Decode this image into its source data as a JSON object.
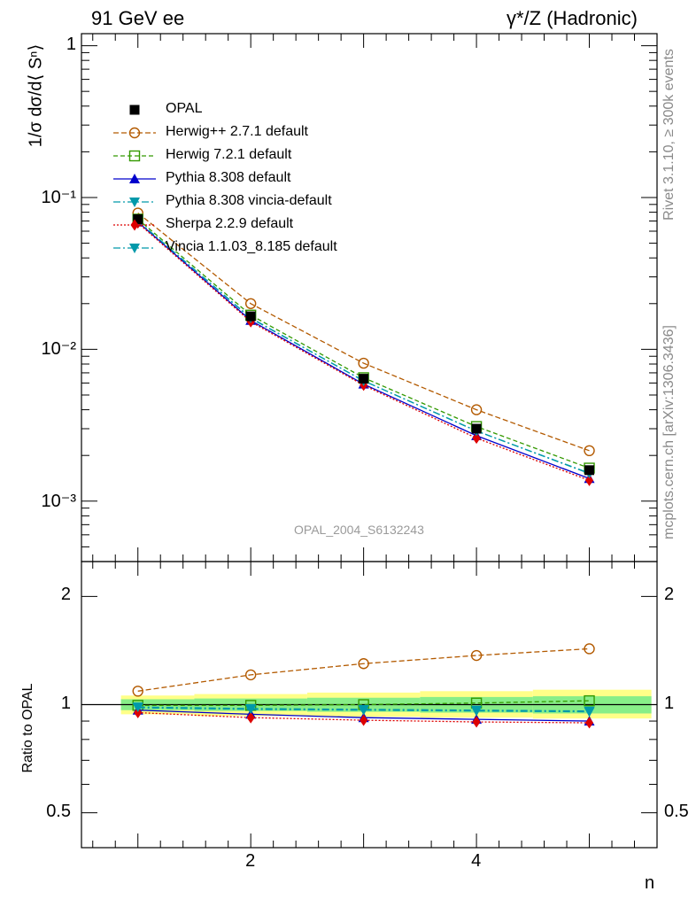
{
  "header": {
    "title_left": "91 GeV ee",
    "title_right": "γ*/Z (Hadronic)"
  },
  "side_notes": {
    "rivet": "Rivet 3.1.10, ≥ 300k events",
    "mcplots": "mcplots.cern.ch [arXiv:1306.3436]"
  },
  "watermark": "OPAL_2004_S6132243",
  "chart_data": [
    {
      "type": "line",
      "title": "",
      "ylabel": "1/σ dσ/d⟨ Sⁿ⟩",
      "xlabel": "n",
      "yscale": "log",
      "xlim": [
        0.5,
        5.6
      ],
      "ylim": [
        0.0004,
        1.2
      ],
      "y_ticks": [
        0.001,
        0.01,
        0.1,
        1
      ],
      "y_tick_labels": [
        "10⁻³",
        "10⁻²",
        "10⁻¹",
        "1"
      ],
      "x": [
        1,
        2,
        3,
        4,
        5
      ],
      "legend_position": "top-left",
      "series": [
        {
          "name": "OPAL",
          "color": "#000000",
          "marker": "square",
          "dash": "none",
          "line": false,
          "values": [
            0.072,
            0.0165,
            0.0064,
            0.003,
            0.0016
          ]
        },
        {
          "name": "Herwig++ 2.7.1 default",
          "color": "#b35a00",
          "marker": "circle-open",
          "dash": "6,3",
          "values": [
            0.079,
            0.02,
            0.0081,
            0.004,
            0.00215
          ]
        },
        {
          "name": "Herwig 7.2.1 default",
          "color": "#339900",
          "marker": "square-open",
          "dash": "5,3",
          "values": [
            0.072,
            0.0168,
            0.0065,
            0.0031,
            0.00165
          ]
        },
        {
          "name": "Pythia 8.308 default",
          "color": "#0000cc",
          "marker": "triangle-up",
          "dash": "none",
          "values": [
            0.069,
            0.0155,
            0.0059,
            0.0027,
            0.00141
          ]
        },
        {
          "name": "Pythia 8.308 vincia-default",
          "color": "#0099aa",
          "marker": "triangle-down",
          "dash": "8,3,2,3",
          "values": [
            0.07,
            0.016,
            0.0062,
            0.0029,
            0.00152
          ]
        },
        {
          "name": "Sherpa 2.2.9 default",
          "color": "#dd0000",
          "marker": "diamond",
          "dash": "2,2",
          "values": [
            0.068,
            0.0152,
            0.0058,
            0.0026,
            0.00137
          ]
        },
        {
          "name": "Vincia 1.1.03_8.185 default",
          "color": "#0099aa",
          "marker": "triangle-down",
          "dash": "8,3,2,3",
          "values": [
            0.07,
            0.0161,
            0.0062,
            0.0029,
            0.00153
          ]
        }
      ]
    },
    {
      "type": "line",
      "title": "",
      "ylabel": "Ratio to OPAL",
      "xlabel": "n",
      "yscale": "log",
      "xlim": [
        0.5,
        5.6
      ],
      "ylim": [
        0.4,
        2.5
      ],
      "y_ticks": [
        0.5,
        1,
        2
      ],
      "y_tick_labels": [
        "0.5",
        "1",
        "2"
      ],
      "x_ticks": [
        2,
        4
      ],
      "x_tick_labels": [
        "2",
        "4"
      ],
      "x": [
        1,
        2,
        3,
        4,
        5
      ],
      "bands": {
        "yellow": {
          "color": "#ffff88",
          "lo": [
            0.94,
            0.93,
            0.925,
            0.92,
            0.915
          ],
          "hi": [
            1.06,
            1.07,
            1.08,
            1.09,
            1.1
          ]
        },
        "green": {
          "color": "#88ee88",
          "lo": [
            0.965,
            0.96,
            0.955,
            0.95,
            0.945
          ],
          "hi": [
            1.035,
            1.04,
            1.045,
            1.05,
            1.055
          ]
        }
      },
      "series": [
        {
          "name": "Herwig++ 2.7.1 default",
          "color": "#b35a00",
          "marker": "circle-open",
          "dash": "6,3",
          "values": [
            1.09,
            1.21,
            1.3,
            1.37,
            1.43
          ]
        },
        {
          "name": "Herwig 7.2.1 default",
          "color": "#339900",
          "marker": "square-open",
          "dash": "5,3",
          "values": [
            0.995,
            0.995,
            1.0,
            1.01,
            1.025
          ]
        },
        {
          "name": "Pythia 8.308 default",
          "color": "#0000cc",
          "marker": "triangle-up",
          "dash": "none",
          "values": [
            0.965,
            0.94,
            0.92,
            0.91,
            0.9
          ]
        },
        {
          "name": "Pythia 8.308 vincia-default",
          "color": "#0099aa",
          "marker": "triangle-down",
          "dash": "8,3,2,3",
          "values": [
            0.98,
            0.97,
            0.965,
            0.96,
            0.955
          ]
        },
        {
          "name": "Sherpa 2.2.9 default",
          "color": "#dd0000",
          "marker": "diamond",
          "dash": "2,2",
          "values": [
            0.95,
            0.92,
            0.905,
            0.895,
            0.89
          ]
        },
        {
          "name": "Vincia 1.1.03_8.185 default",
          "color": "#0099aa",
          "marker": "triangle-down",
          "dash": "8,3,2,3",
          "values": [
            0.985,
            0.975,
            0.97,
            0.965,
            0.96
          ]
        }
      ]
    }
  ]
}
